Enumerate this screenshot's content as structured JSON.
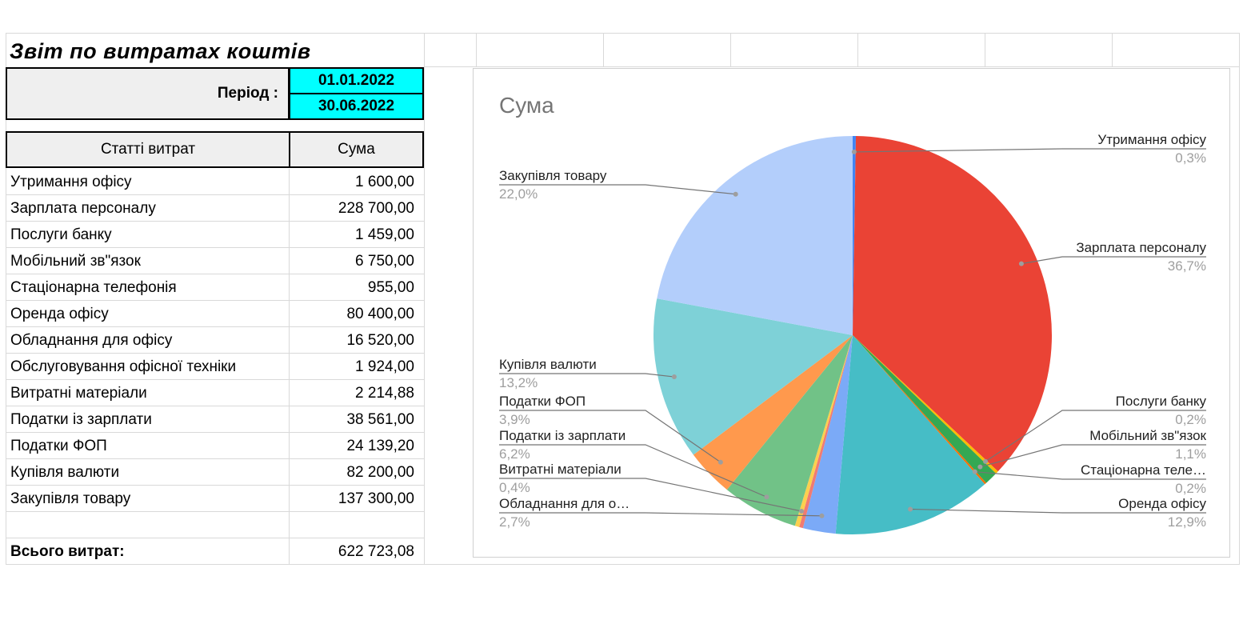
{
  "report": {
    "title": "Звіт по витратах коштів",
    "period_label": "Період :",
    "date_from": "01.01.2022",
    "date_to": "30.06.2022",
    "col_items": "Статті витрат",
    "col_sum": "Сума",
    "rows": [
      {
        "name": "Утримання офісу",
        "value": "1 600,00"
      },
      {
        "name": "Зарплата персоналу",
        "value": "228 700,00"
      },
      {
        "name": "Послуги банку",
        "value": "1 459,00"
      },
      {
        "name": "Мобільний зв\"язок",
        "value": "6 750,00"
      },
      {
        "name": "Стаціонарна телефонія",
        "value": "955,00"
      },
      {
        "name": "Оренда офісу",
        "value": "80 400,00"
      },
      {
        "name": "Обладнання для офісу",
        "value": "16 520,00"
      },
      {
        "name": "Обслуговування офісної техніки",
        "value": "1 924,00"
      },
      {
        "name": "Витратні матеріали",
        "value": "2 214,88"
      },
      {
        "name": "Податки із зарплати",
        "value": "38 561,00"
      },
      {
        "name": "Податки ФОП",
        "value": "24 139,20"
      },
      {
        "name": "Купівля валюти",
        "value": "82 200,00"
      },
      {
        "name": "Закупівля товару",
        "value": "137 300,00"
      },
      {
        "name": "",
        "value": ""
      }
    ],
    "total_label": "Всього витрат:",
    "total_value": "622 723,08"
  },
  "chart_data": {
    "type": "pie",
    "title": "Сума",
    "slices": [
      {
        "label": "Утримання офісу",
        "display_label": "Утримання офісу",
        "value": 1600.0,
        "pct": "0,3%",
        "color": "#4285f4"
      },
      {
        "label": "Зарплата персоналу",
        "display_label": "Зарплата персоналу",
        "value": 228700.0,
        "pct": "36,7%",
        "color": "#ea4335"
      },
      {
        "label": "Послуги банку",
        "display_label": "Послуги банку",
        "value": 1459.0,
        "pct": "0,2%",
        "color": "#fbbc04"
      },
      {
        "label": "Мобільний зв\"язок",
        "display_label": "Мобільний зв\"язок",
        "value": 6750.0,
        "pct": "1,1%",
        "color": "#34a853"
      },
      {
        "label": "Стаціонарна телефонія",
        "display_label": "Стаціонарна теле…",
        "value": 955.0,
        "pct": "0,2%",
        "color": "#ff6d01"
      },
      {
        "label": "Оренда офісу",
        "display_label": "Оренда офісу",
        "value": 80400.0,
        "pct": "12,9%",
        "color": "#46bdc6"
      },
      {
        "label": "Обладнання для офісу",
        "display_label": "Обладнання для о…",
        "value": 16520.0,
        "pct": "2,7%",
        "color": "#7baaf7"
      },
      {
        "label": "Обслуговування офісної техніки",
        "display_label": "",
        "value": 1924.0,
        "pct": "",
        "color": "#f07b72"
      },
      {
        "label": "Витратні матеріали",
        "display_label": "Витратні матеріали",
        "value": 2214.88,
        "pct": "0,4%",
        "color": "#fcd04f"
      },
      {
        "label": "Податки із зарплати",
        "display_label": "Податки із зарплати",
        "value": 38561.0,
        "pct": "6,2%",
        "color": "#71c287"
      },
      {
        "label": "Податки ФОП",
        "display_label": "Податки ФОП",
        "value": 24139.2,
        "pct": "3,9%",
        "color": "#ff994d"
      },
      {
        "label": "Купівля валюти",
        "display_label": "Купівля валюти",
        "value": 82200.0,
        "pct": "13,2%",
        "color": "#7ed1d7"
      },
      {
        "label": "Закупівля товару",
        "display_label": "Закупівля товару",
        "value": 137300.0,
        "pct": "22,0%",
        "color": "#b3cefb"
      }
    ]
  }
}
